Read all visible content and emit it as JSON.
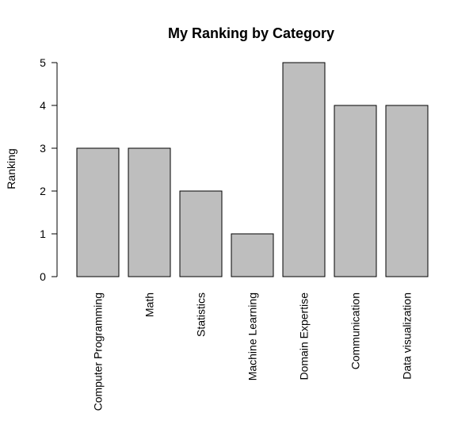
{
  "chart_data": {
    "type": "bar",
    "title": "My Ranking by Category",
    "xlabel": "",
    "ylabel": "Ranking",
    "categories": [
      "Computer Programming",
      "Math",
      "Statistics",
      "Machine Learning",
      "Domain Expertise",
      "Communication",
      "Data visualization"
    ],
    "values": [
      3,
      3,
      2,
      1,
      5,
      4,
      4
    ],
    "ylim": [
      0,
      5
    ],
    "yticks": [
      "0",
      "1",
      "2",
      "3",
      "4",
      "5"
    ],
    "grid": false,
    "legend": "none",
    "bar_color": "#bebebe",
    "bar_border_color": "#000000"
  }
}
